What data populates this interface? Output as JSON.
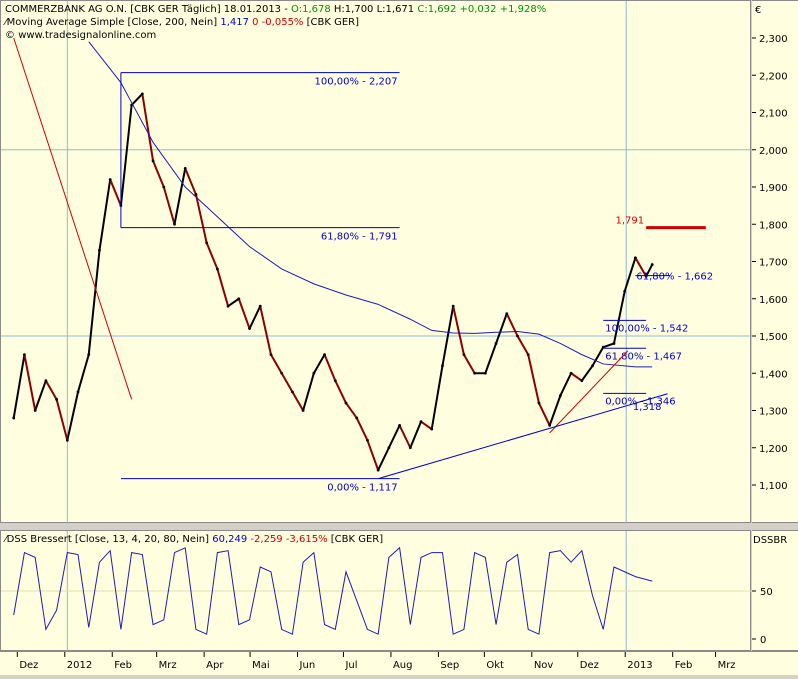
{
  "header": {
    "line1_name": "COMMERZBANK AG O.N. [CBK GER  Täglich] 18.01.2013 - ",
    "line1_open": "O:1,678",
    "line1_hlc": " H:1,700 L:1,671 ",
    "line1_close": "C:1,692 +0,032 +1,928%",
    "line2_name": "Moving Average Simple [Close, 200, Nein] ",
    "line2_value": "1,417",
    "line2_change": " 0 -0,055% ",
    "line2_symbol": "[CBK GER]",
    "line3_site": "www.tradesignalonline.com"
  },
  "indicator_header": {
    "name": "DSS Bressert [Close, 13, 4, 20, 80, Nein] ",
    "value": "60,249",
    "change": " -2,259 -3,615% ",
    "symbol": "[CBK GER]"
  },
  "axis": {
    "currency": "€",
    "ind_label": "DSSBR"
  },
  "colors": {
    "background": "#ffffe0",
    "price_up": "#000000",
    "price_down": "#8b0000",
    "moving_average": "#1c1cb4",
    "fib_lines": "#0000c8",
    "trend_red": "#d00000",
    "grid": "#8fb8d8"
  },
  "fibonacci": {
    "upper": [
      {
        "label": "100,00% - 2,207",
        "value": 2.207
      },
      {
        "label": "61,80% - 1,791",
        "value": 1.791
      },
      {
        "label": "0,00% - 1,117",
        "value": 1.117
      }
    ],
    "lower": [
      {
        "label": "100,00% - 1,542",
        "value": 1.542
      },
      {
        "label": "61,80% - 1,467",
        "value": 1.467
      },
      {
        "label": "0,00% - 1,346",
        "value": 1.346
      }
    ],
    "target_label": "1,791",
    "trend_value_label": "1,318",
    "partial_label": "61,80% - 1,662"
  },
  "chart_data": {
    "type": "line",
    "title": "COMMERZBANK AG O.N.",
    "ylabel": "€",
    "ylim": [
      1.05,
      2.35
    ],
    "y_ticks": [
      "2,300",
      "2,200",
      "2,100",
      "2,000",
      "1,900",
      "1,800",
      "1,700",
      "1,600",
      "1,500",
      "1,400",
      "1,300",
      "1,200",
      "1,100"
    ],
    "x_ticks": [
      "Dez",
      "2012",
      "Feb",
      "Mrz",
      "Apr",
      "Mai",
      "Jun",
      "Jul",
      "Aug",
      "Sep",
      "Okt",
      "Nov",
      "Dez",
      "2013",
      "Feb",
      "Mrz"
    ],
    "series": [
      {
        "name": "COMMERZBANK AG O.N.",
        "points": [
          [
            "2011-11-28",
            1.28
          ],
          [
            "2011-12-05",
            1.45
          ],
          [
            "2011-12-12",
            1.3
          ],
          [
            "2011-12-19",
            1.38
          ],
          [
            "2011-12-26",
            1.33
          ],
          [
            "2012-01-02",
            1.22
          ],
          [
            "2012-01-09",
            1.35
          ],
          [
            "2012-01-16",
            1.45
          ],
          [
            "2012-01-23",
            1.73
          ],
          [
            "2012-01-30",
            1.92
          ],
          [
            "2012-02-06",
            1.85
          ],
          [
            "2012-02-13",
            2.12
          ],
          [
            "2012-02-20",
            2.15
          ],
          [
            "2012-02-27",
            1.97
          ],
          [
            "2012-03-05",
            1.9
          ],
          [
            "2012-03-12",
            1.8
          ],
          [
            "2012-03-19",
            1.95
          ],
          [
            "2012-03-26",
            1.88
          ],
          [
            "2012-04-02",
            1.75
          ],
          [
            "2012-04-09",
            1.68
          ],
          [
            "2012-04-16",
            1.58
          ],
          [
            "2012-04-23",
            1.6
          ],
          [
            "2012-04-30",
            1.52
          ],
          [
            "2012-05-07",
            1.58
          ],
          [
            "2012-05-14",
            1.45
          ],
          [
            "2012-05-21",
            1.4
          ],
          [
            "2012-05-28",
            1.35
          ],
          [
            "2012-06-04",
            1.3
          ],
          [
            "2012-06-11",
            1.4
          ],
          [
            "2012-06-18",
            1.45
          ],
          [
            "2012-06-25",
            1.38
          ],
          [
            "2012-07-02",
            1.32
          ],
          [
            "2012-07-09",
            1.28
          ],
          [
            "2012-07-16",
            1.22
          ],
          [
            "2012-07-23",
            1.14
          ],
          [
            "2012-07-30",
            1.2
          ],
          [
            "2012-08-06",
            1.26
          ],
          [
            "2012-08-13",
            1.2
          ],
          [
            "2012-08-20",
            1.27
          ],
          [
            "2012-08-27",
            1.25
          ],
          [
            "2012-09-03",
            1.42
          ],
          [
            "2012-09-10",
            1.58
          ],
          [
            "2012-09-17",
            1.45
          ],
          [
            "2012-09-24",
            1.4
          ],
          [
            "2012-10-01",
            1.4
          ],
          [
            "2012-10-08",
            1.48
          ],
          [
            "2012-10-15",
            1.56
          ],
          [
            "2012-10-22",
            1.5
          ],
          [
            "2012-10-29",
            1.45
          ],
          [
            "2012-11-05",
            1.32
          ],
          [
            "2012-11-12",
            1.26
          ],
          [
            "2012-11-19",
            1.34
          ],
          [
            "2012-11-26",
            1.4
          ],
          [
            "2012-12-03",
            1.38
          ],
          [
            "2012-12-10",
            1.42
          ],
          [
            "2012-12-17",
            1.47
          ],
          [
            "2012-12-24",
            1.48
          ],
          [
            "2012-12-31",
            1.62
          ],
          [
            "2013-01-07",
            1.71
          ],
          [
            "2013-01-14",
            1.66
          ],
          [
            "2013-01-18",
            1.692
          ]
        ]
      },
      {
        "name": "Moving Average Simple",
        "points": [
          [
            "2012-01-16",
            2.29
          ],
          [
            "2012-02-06",
            2.18
          ],
          [
            "2012-02-27",
            2.02
          ],
          [
            "2012-03-19",
            1.9
          ],
          [
            "2012-04-09",
            1.82
          ],
          [
            "2012-04-30",
            1.74
          ],
          [
            "2012-05-21",
            1.68
          ],
          [
            "2012-06-11",
            1.64
          ],
          [
            "2012-07-02",
            1.61
          ],
          [
            "2012-07-23",
            1.585
          ],
          [
            "2012-08-13",
            1.545
          ],
          [
            "2012-08-27",
            1.515
          ],
          [
            "2012-09-10",
            1.508
          ],
          [
            "2012-09-24",
            1.507
          ],
          [
            "2012-10-08",
            1.51
          ],
          [
            "2012-10-22",
            1.512
          ],
          [
            "2012-11-05",
            1.505
          ],
          [
            "2012-11-19",
            1.48
          ],
          [
            "2012-12-03",
            1.45
          ],
          [
            "2012-12-17",
            1.425
          ],
          [
            "2013-01-07",
            1.417
          ],
          [
            "2013-01-18",
            1.417
          ]
        ]
      },
      {
        "name": "DSS Bressert",
        "points": [
          [
            "2011-11-28",
            25
          ],
          [
            "2011-12-05",
            90
          ],
          [
            "2011-12-12",
            85
          ],
          [
            "2011-12-19",
            10
          ],
          [
            "2011-12-26",
            30
          ],
          [
            "2012-01-02",
            90
          ],
          [
            "2012-01-09",
            88
          ],
          [
            "2012-01-16",
            12
          ],
          [
            "2012-01-23",
            80
          ],
          [
            "2012-01-30",
            92
          ],
          [
            "2012-02-06",
            10
          ],
          [
            "2012-02-13",
            90
          ],
          [
            "2012-02-20",
            88
          ],
          [
            "2012-02-27",
            15
          ],
          [
            "2012-03-05",
            20
          ],
          [
            "2012-03-12",
            90
          ],
          [
            "2012-03-19",
            95
          ],
          [
            "2012-03-26",
            10
          ],
          [
            "2012-04-02",
            5
          ],
          [
            "2012-04-09",
            90
          ],
          [
            "2012-04-16",
            92
          ],
          [
            "2012-04-23",
            15
          ],
          [
            "2012-04-30",
            20
          ],
          [
            "2012-05-07",
            75
          ],
          [
            "2012-05-14",
            70
          ],
          [
            "2012-05-21",
            10
          ],
          [
            "2012-05-28",
            5
          ],
          [
            "2012-06-04",
            80
          ],
          [
            "2012-06-11",
            90
          ],
          [
            "2012-06-18",
            15
          ],
          [
            "2012-06-25",
            10
          ],
          [
            "2012-07-02",
            70
          ],
          [
            "2012-07-09",
            40
          ],
          [
            "2012-07-16",
            10
          ],
          [
            "2012-07-23",
            5
          ],
          [
            "2012-07-30",
            85
          ],
          [
            "2012-08-06",
            95
          ],
          [
            "2012-08-13",
            15
          ],
          [
            "2012-08-20",
            85
          ],
          [
            "2012-08-27",
            90
          ],
          [
            "2012-09-03",
            90
          ],
          [
            "2012-09-10",
            5
          ],
          [
            "2012-09-17",
            10
          ],
          [
            "2012-09-24",
            90
          ],
          [
            "2012-10-01",
            85
          ],
          [
            "2012-10-08",
            15
          ],
          [
            "2012-10-15",
            80
          ],
          [
            "2012-10-22",
            88
          ],
          [
            "2012-10-29",
            10
          ],
          [
            "2012-11-05",
            5
          ],
          [
            "2012-11-12",
            90
          ],
          [
            "2012-11-19",
            92
          ],
          [
            "2012-11-26",
            80
          ],
          [
            "2012-12-03",
            92
          ],
          [
            "2012-12-10",
            45
          ],
          [
            "2012-12-17",
            10
          ],
          [
            "2012-12-24",
            75
          ],
          [
            "2013-01-07",
            65
          ],
          [
            "2013-01-18",
            60.249
          ]
        ]
      }
    ]
  }
}
